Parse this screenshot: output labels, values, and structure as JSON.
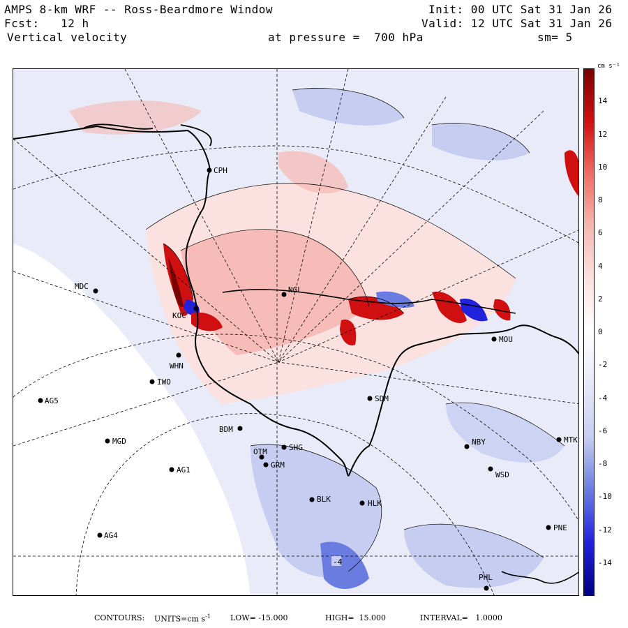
{
  "header": {
    "title": "AMPS 8-km WRF -- Ross-Beardmore Window",
    "init": "Init: 00 UTC Sat 31 Jan 26",
    "fcst": "Fcst:   12 h",
    "valid": "Valid: 12 UTC Sat 31 Jan 26",
    "field": "Vertical velocity",
    "pressure": "at pressure =  700 hPa",
    "smoothing": "sm= 5"
  },
  "colorbar": {
    "units": "cm s⁻¹",
    "ticks": [
      "14",
      "12",
      "10",
      "8",
      "6",
      "4",
      "2",
      "0",
      "-2",
      "-4",
      "-6",
      "-8",
      "-10",
      "-12",
      "-14"
    ],
    "colors": {
      "neg_deep": "#000080",
      "neg_strong": "#2222dd",
      "neg_mid": "#6a7ce0",
      "neg_light": "#c6cdf0",
      "neg_faint": "#e6e8f8",
      "zero": "#ffffff",
      "pos_faint": "#fbe2e0",
      "pos_light": "#f6b8b2",
      "pos_mid": "#ee6e64",
      "pos_strong": "#d01010",
      "pos_deep": "#7a0000"
    }
  },
  "stations": [
    {
      "id": "CPH",
      "label": "CPH"
    },
    {
      "id": "MDC",
      "label": "MDC"
    },
    {
      "id": "NGL",
      "label": "NGL"
    },
    {
      "id": "KOC",
      "label": "KOC"
    },
    {
      "id": "WHN",
      "label": "WHN"
    },
    {
      "id": "IWO",
      "label": "IWO"
    },
    {
      "id": "AG5",
      "label": "AG5"
    },
    {
      "id": "SDM",
      "label": "SDM"
    },
    {
      "id": "MOU",
      "label": "MOU"
    },
    {
      "id": "BDM",
      "label": "BDM"
    },
    {
      "id": "MGD",
      "label": "MGD"
    },
    {
      "id": "OTM",
      "label": "OTM"
    },
    {
      "id": "SHG",
      "label": "SHG"
    },
    {
      "id": "GRM",
      "label": "GRM"
    },
    {
      "id": "AG1",
      "label": "AG1"
    },
    {
      "id": "NBY",
      "label": "NBY"
    },
    {
      "id": "MTK",
      "label": "MTK"
    },
    {
      "id": "WSD",
      "label": "WSD"
    },
    {
      "id": "BLK",
      "label": "BLK"
    },
    {
      "id": "HLK",
      "label": "HLK"
    },
    {
      "id": "AG4",
      "label": "AG4"
    },
    {
      "id": "PNE",
      "label": "PNE"
    },
    {
      "id": "PHL",
      "label": "PHL"
    }
  ],
  "annotations": {
    "contour_min_label": "-4"
  },
  "footer": {
    "contours": "CONTOURS:",
    "units_label": "UNITS=cm s",
    "units_sup": "-1",
    "low": "LOW= -15.000",
    "high": "HIGH=  15.000",
    "interval": "INTERVAL=   1.0000"
  }
}
